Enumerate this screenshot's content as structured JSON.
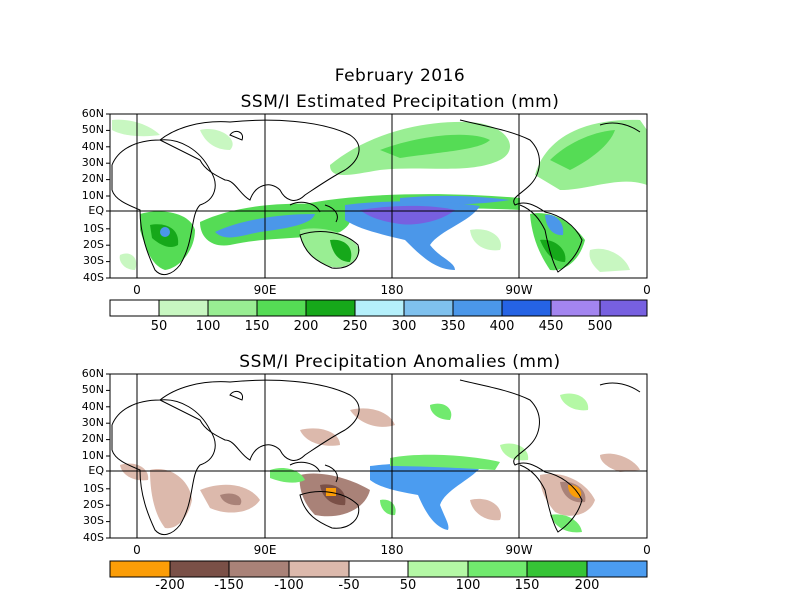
{
  "header": {
    "month": "February 2016"
  },
  "map1": {
    "title": "SSM/I Estimated Precipitation (mm)",
    "lat_labels": [
      "60N",
      "50N",
      "40N",
      "30N",
      "20N",
      "10N",
      "EQ",
      "10S",
      "20S",
      "30S",
      "40S"
    ],
    "lon_labels": [
      "0",
      "90E",
      "180",
      "90W",
      "0"
    ],
    "colorbar": {
      "colors": [
        "#ffffff",
        "#c8f7c1",
        "#99ee93",
        "#55dc55",
        "#16a81a",
        "#b5f0fb",
        "#7fc1ee",
        "#4b97e9",
        "#2563e4",
        "#a385f0",
        "#7760e0"
      ],
      "labels": [
        "50",
        "100",
        "150",
        "200",
        "250",
        "300",
        "350",
        "400",
        "450",
        "500"
      ]
    }
  },
  "map2": {
    "title": "SSM/I Precipitation Anomalies (mm)",
    "lat_labels": [
      "60N",
      "50N",
      "40N",
      "30N",
      "20N",
      "10N",
      "EQ",
      "10S",
      "20S",
      "30S",
      "40S"
    ],
    "lon_labels": [
      "0",
      "90E",
      "180",
      "90W",
      "0"
    ],
    "colorbar": {
      "colors": [
        "#fb9d07",
        "#7a5047",
        "#a98278",
        "#dcb9ac",
        "#ffffff",
        "#b4f8a5",
        "#71ea6e",
        "#36c436",
        "#4b9cf0"
      ],
      "labels": [
        "-200",
        "-150",
        "-100",
        "-50",
        "50",
        "100",
        "150",
        "200"
      ]
    }
  }
}
